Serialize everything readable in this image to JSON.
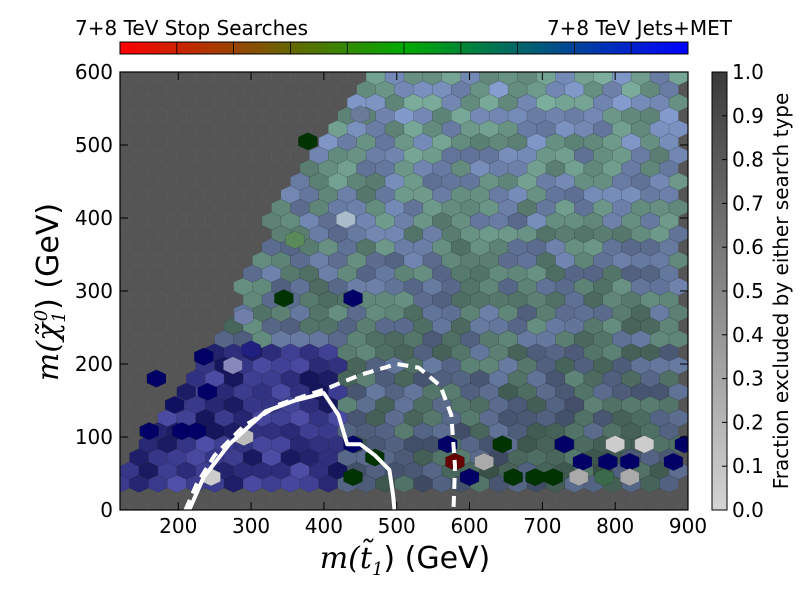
{
  "chart_data": {
    "type": "heatmap",
    "subtype": "hexbin",
    "top_labels": {
      "left": "7+8 TeV Stop Searches",
      "right": "7+8 TeV Jets+MET"
    },
    "xlabel": "m(t̃₁) (GeV)",
    "xlabel_main": "m(t̃",
    "xlabel_sub": "1",
    "xlabel_unit": ") (GeV)",
    "ylabel": "m(χ̃₁⁰) (GeV)",
    "ylabel_main": "m(χ̃",
    "ylabel_sub": "1",
    "ylabel_sup": "0",
    "ylabel_unit": ") (GeV)",
    "xlim": [
      120,
      900
    ],
    "ylim": [
      0,
      600
    ],
    "xticks": [
      200,
      300,
      400,
      500,
      600,
      700,
      800,
      900
    ],
    "yticks": [
      0,
      100,
      200,
      300,
      400,
      500,
      600
    ],
    "colorbar": {
      "label": "Fraction excluded by either search type",
      "range": [
        0.0,
        1.0
      ],
      "ticks": [
        "0.0",
        "0.1",
        "0.2",
        "0.3",
        "0.4",
        "0.5",
        "0.6",
        "0.7",
        "0.8",
        "0.9",
        "1.0"
      ]
    },
    "background_color": "#555555",
    "hex_dx_gev": 26,
    "row_dy_gev": 18,
    "region_boundary": [
      [
        120,
        0
      ],
      [
        120,
        40
      ],
      [
        180,
        150
      ],
      [
        260,
        240
      ],
      [
        320,
        390
      ],
      [
        380,
        480
      ],
      [
        450,
        600
      ],
      [
        900,
        600
      ],
      [
        900,
        0
      ]
    ],
    "special_hexes": [
      {
        "x": 360,
        "y": 370,
        "color": "#5a8a5a"
      },
      {
        "x": 378,
        "y": 505,
        "color": "#003300"
      },
      {
        "x": 290,
        "y": 265,
        "color": "#6f7faa"
      },
      {
        "x": 300,
        "y": 220,
        "color": "#202080"
      },
      {
        "x": 345,
        "y": 290,
        "color": "#003300"
      },
      {
        "x": 170,
        "y": 180,
        "color": "#000066"
      },
      {
        "x": 235,
        "y": 210,
        "color": "#000066"
      },
      {
        "x": 160,
        "y": 108,
        "color": "#000066"
      },
      {
        "x": 205,
        "y": 108,
        "color": "#000066"
      },
      {
        "x": 225,
        "y": 108,
        "color": "#000066"
      },
      {
        "x": 195,
        "y": 144,
        "color": "#101060"
      },
      {
        "x": 240,
        "y": 162,
        "color": "#000066"
      },
      {
        "x": 275,
        "y": 198,
        "color": "#8888bb"
      },
      {
        "x": 290,
        "y": 100,
        "color": "#bbbbbb"
      },
      {
        "x": 245,
        "y": 45,
        "color": "#cccccc"
      },
      {
        "x": 440,
        "y": 45,
        "color": "#003300"
      },
      {
        "x": 470,
        "y": 72,
        "color": "#003300"
      },
      {
        "x": 440,
        "y": 90,
        "color": "#000066"
      },
      {
        "x": 570,
        "y": 90,
        "color": "#000066"
      },
      {
        "x": 580,
        "y": 66,
        "color": "#660000"
      },
      {
        "x": 600,
        "y": 45,
        "color": "#000066"
      },
      {
        "x": 620,
        "y": 66,
        "color": "#aaaaaa"
      },
      {
        "x": 645,
        "y": 90,
        "color": "#003300"
      },
      {
        "x": 660,
        "y": 45,
        "color": "#003300"
      },
      {
        "x": 690,
        "y": 45,
        "color": "#003300"
      },
      {
        "x": 715,
        "y": 45,
        "color": "#003300"
      },
      {
        "x": 730,
        "y": 90,
        "color": "#000066"
      },
      {
        "x": 755,
        "y": 66,
        "color": "#000066"
      },
      {
        "x": 790,
        "y": 66,
        "color": "#000066"
      },
      {
        "x": 800,
        "y": 90,
        "color": "#cccccc"
      },
      {
        "x": 820,
        "y": 66,
        "color": "#000066"
      },
      {
        "x": 840,
        "y": 90,
        "color": "#cccccc"
      },
      {
        "x": 820,
        "y": 45,
        "color": "#aaaaaa"
      },
      {
        "x": 785,
        "y": 45,
        "color": "#3a6a4a"
      },
      {
        "x": 750,
        "y": 45,
        "color": "#aaaaaa"
      },
      {
        "x": 880,
        "y": 66,
        "color": "#000066"
      },
      {
        "x": 895,
        "y": 90,
        "color": "#000066"
      },
      {
        "x": 430,
        "y": 398,
        "color": "#aabbcc"
      },
      {
        "x": 450,
        "y": 542,
        "color": "#6a7a99"
      },
      {
        "x": 440,
        "y": 290,
        "color": "#000066"
      }
    ],
    "contours": [
      {
        "name": "stop-searches",
        "style": "solid",
        "points": [
          [
            215,
            0
          ],
          [
            235,
            45
          ],
          [
            270,
            90
          ],
          [
            320,
            135
          ],
          [
            360,
            150
          ],
          [
            400,
            160
          ],
          [
            420,
            130
          ],
          [
            432,
            90
          ],
          [
            450,
            90
          ],
          [
            470,
            75
          ],
          [
            490,
            55
          ],
          [
            495,
            20
          ],
          [
            497,
            0
          ]
        ]
      },
      {
        "name": "jets-met",
        "style": "dashed",
        "points": [
          [
            210,
            0
          ],
          [
            225,
            35
          ],
          [
            250,
            75
          ],
          [
            290,
            115
          ],
          [
            340,
            145
          ],
          [
            400,
            165
          ],
          [
            450,
            185
          ],
          [
            500,
            200
          ],
          [
            530,
            195
          ],
          [
            560,
            170
          ],
          [
            575,
            130
          ],
          [
            580,
            60
          ],
          [
            578,
            0
          ]
        ]
      }
    ]
  }
}
